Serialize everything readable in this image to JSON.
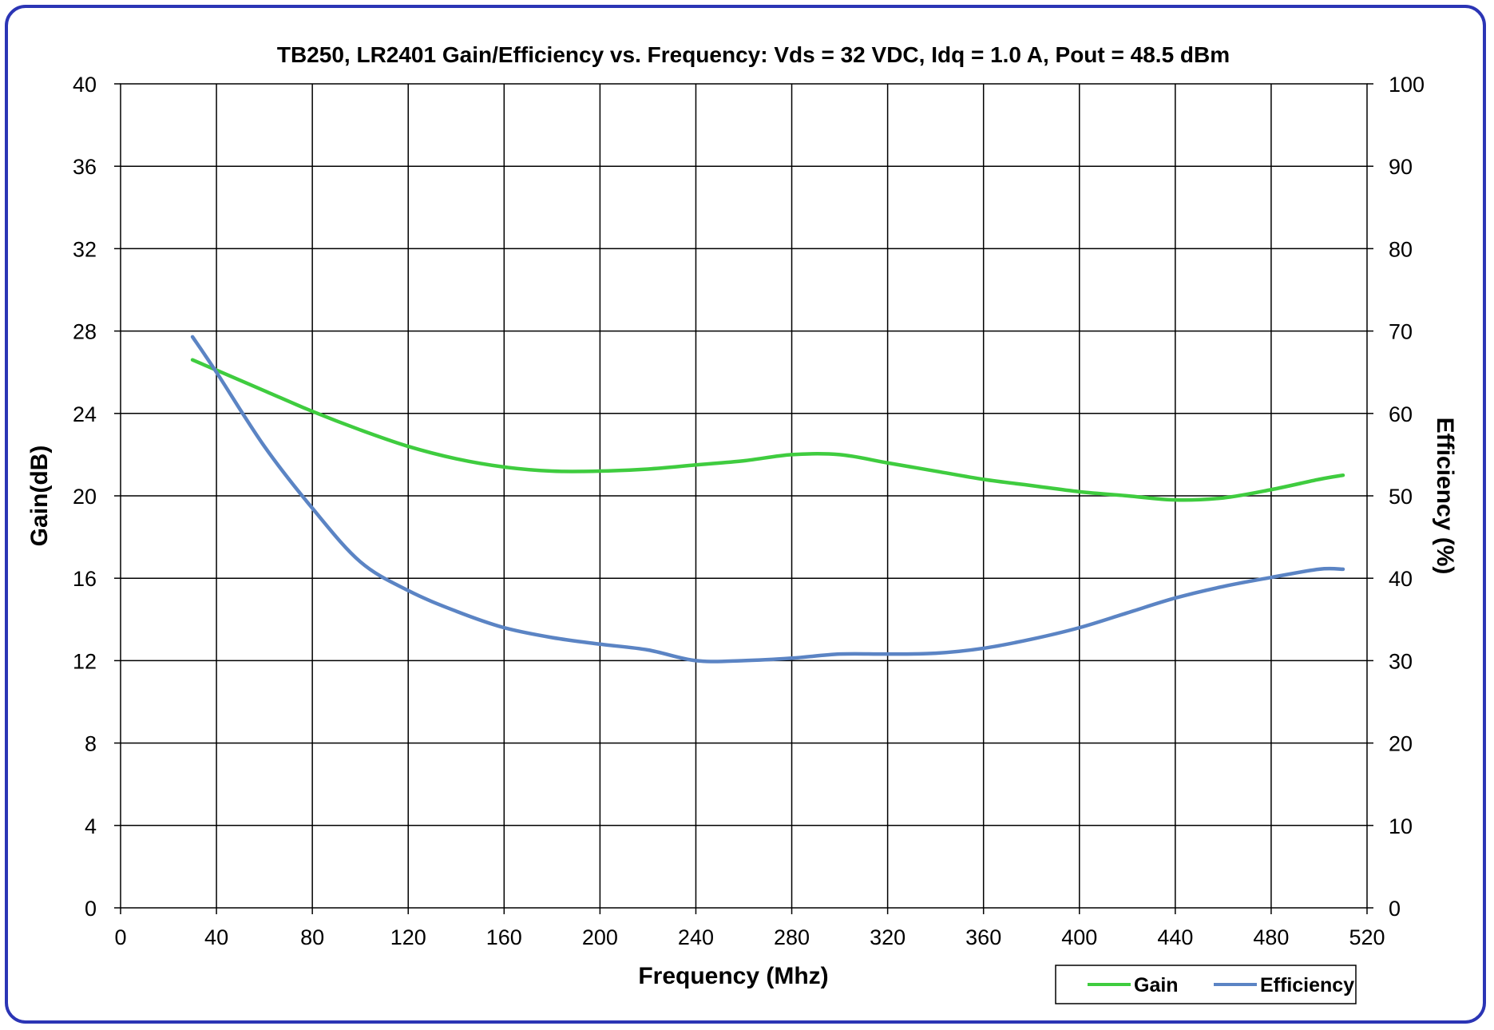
{
  "chart_data": {
    "type": "line",
    "title": "TB250, LR2401 Gain/Efficiency vs. Frequency: Vds = 32 VDC, Idq = 1.0 A, Pout = 48.5 dBm",
    "xlabel": "Frequency (Mhz)",
    "ylabel": "Gain(dB)",
    "y2label": "Efficiency (%)",
    "xlim": [
      0,
      520
    ],
    "ylim": [
      0,
      40
    ],
    "y2lim": [
      0,
      100
    ],
    "x_ticks": [
      "0",
      "40",
      "80",
      "120",
      "160",
      "200",
      "240",
      "280",
      "320",
      "360",
      "400",
      "440",
      "480",
      "520"
    ],
    "y_ticks": [
      "0",
      "4",
      "8",
      "12",
      "16",
      "20",
      "24",
      "28",
      "32",
      "36",
      "40"
    ],
    "y2_ticks": [
      "0",
      "10",
      "20",
      "30",
      "40",
      "50",
      "60",
      "70",
      "80",
      "90",
      "100"
    ],
    "grid": true,
    "legend_position": "bottom-right",
    "series": [
      {
        "name": "Gain",
        "axis": "left",
        "color": "#3fcc3f",
        "x": [
          30,
          40,
          60,
          80,
          100,
          120,
          140,
          160,
          180,
          200,
          220,
          240,
          260,
          280,
          300,
          320,
          340,
          360,
          380,
          400,
          420,
          440,
          460,
          480,
          500,
          510
        ],
        "y": [
          26.6,
          26.1,
          25.1,
          24.1,
          23.2,
          22.4,
          21.8,
          21.4,
          21.2,
          21.2,
          21.3,
          21.5,
          21.7,
          22.0,
          22.0,
          21.6,
          21.2,
          20.8,
          20.5,
          20.2,
          20.0,
          19.8,
          19.9,
          20.3,
          20.8,
          21.0
        ]
      },
      {
        "name": "Efficiency",
        "axis": "right",
        "color": "#5b84c4",
        "x": [
          30,
          40,
          60,
          80,
          100,
          120,
          140,
          160,
          180,
          200,
          220,
          240,
          260,
          280,
          300,
          320,
          340,
          360,
          380,
          400,
          420,
          440,
          460,
          480,
          500,
          510
        ],
        "y": [
          69.3,
          65.0,
          56.0,
          48.5,
          42.0,
          38.5,
          36.0,
          34.0,
          32.8,
          32.0,
          31.3,
          30.0,
          30.0,
          30.3,
          30.8,
          30.8,
          30.9,
          31.5,
          32.6,
          34.0,
          35.8,
          37.6,
          39.0,
          40.1,
          41.1,
          41.1
        ]
      }
    ]
  }
}
